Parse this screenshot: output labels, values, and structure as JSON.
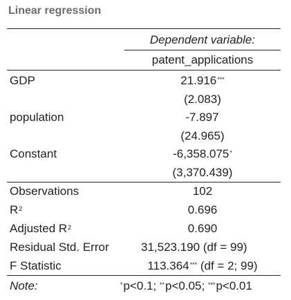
{
  "title": "Linear regression",
  "dependent_variable_label": "Dependent variable:",
  "dependent_variable": "patent_applications",
  "coefficients": [
    {
      "name": "GDP",
      "estimate": "21.916",
      "stars": "***",
      "se": "(2.083)"
    },
    {
      "name": "population",
      "estimate": "-7.897",
      "stars": "",
      "se": "(24.965)"
    },
    {
      "name": "Constant",
      "estimate": "-6,358.075",
      "stars": "*",
      "se": "(3,370.439)"
    }
  ],
  "stats": {
    "observations": {
      "label": "Observations",
      "value": "102"
    },
    "r2": {
      "label": "R",
      "sup": "2",
      "value": "0.696"
    },
    "adj_r2": {
      "label": "Adjusted R",
      "sup": "2",
      "value": "0.690"
    },
    "rse": {
      "label": "Residual Std. Error",
      "value": "31,523.190 (df = 99)"
    },
    "fstat": {
      "label": "F Statistic",
      "value": "113.364",
      "stars": "***",
      "suffix": "(df = 2; 99)"
    }
  },
  "note": {
    "label": "Note:",
    "p1_stars": "*",
    "p1": "p<0.1;",
    "p2_stars": "**",
    "p2": "p<0.05;",
    "p3_stars": "***",
    "p3": "p<0.01"
  }
}
